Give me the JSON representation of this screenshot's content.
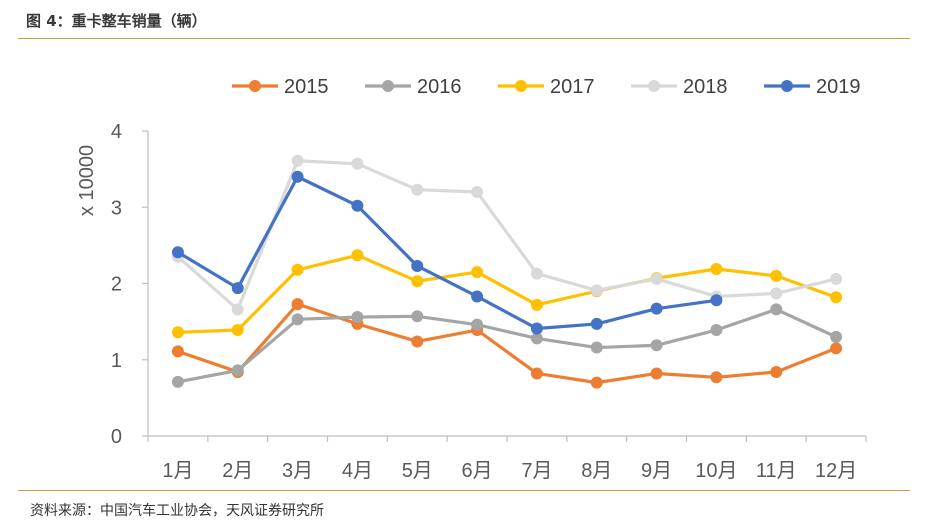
{
  "figure": {
    "title": "图 4：重卡整车销量（辆）",
    "source": "资料来源：中国汽车工业协会，天风证券研究所"
  },
  "chart_data": {
    "type": "line",
    "title": "",
    "xlabel": "",
    "ylabel": "x 10000",
    "ylim": [
      0,
      4
    ],
    "yticks": [
      "0",
      "1",
      "2",
      "3",
      "4"
    ],
    "categories": [
      "1月",
      "2月",
      "3月",
      "4月",
      "5月",
      "6月",
      "7月",
      "8月",
      "9月",
      "10月",
      "11月",
      "12月"
    ],
    "legend_position": "top",
    "grid": false,
    "series": [
      {
        "name": "2015",
        "color": "#ED7D31",
        "values": [
          1.11,
          0.84,
          1.73,
          1.47,
          1.24,
          1.39,
          0.82,
          0.7,
          0.82,
          0.77,
          0.84,
          1.15
        ]
      },
      {
        "name": "2016",
        "color": "#A5A5A5",
        "values": [
          0.71,
          0.86,
          1.53,
          1.56,
          1.57,
          1.46,
          1.28,
          1.16,
          1.19,
          1.39,
          1.66,
          1.3
        ]
      },
      {
        "name": "2017",
        "color": "#FFC000",
        "values": [
          1.36,
          1.39,
          2.18,
          2.37,
          2.03,
          2.15,
          1.72,
          1.9,
          2.07,
          2.19,
          2.1,
          1.82
        ]
      },
      {
        "name": "2018",
        "color": "#D9D9D9",
        "values": [
          2.35,
          1.66,
          3.61,
          3.57,
          3.23,
          3.2,
          2.13,
          1.91,
          2.06,
          1.83,
          1.87,
          2.06
        ]
      },
      {
        "name": "2019",
        "color": "#4472C4",
        "values": [
          2.41,
          1.94,
          3.4,
          3.02,
          2.23,
          1.83,
          1.41,
          1.47,
          1.67,
          1.78,
          null,
          null
        ]
      }
    ]
  }
}
